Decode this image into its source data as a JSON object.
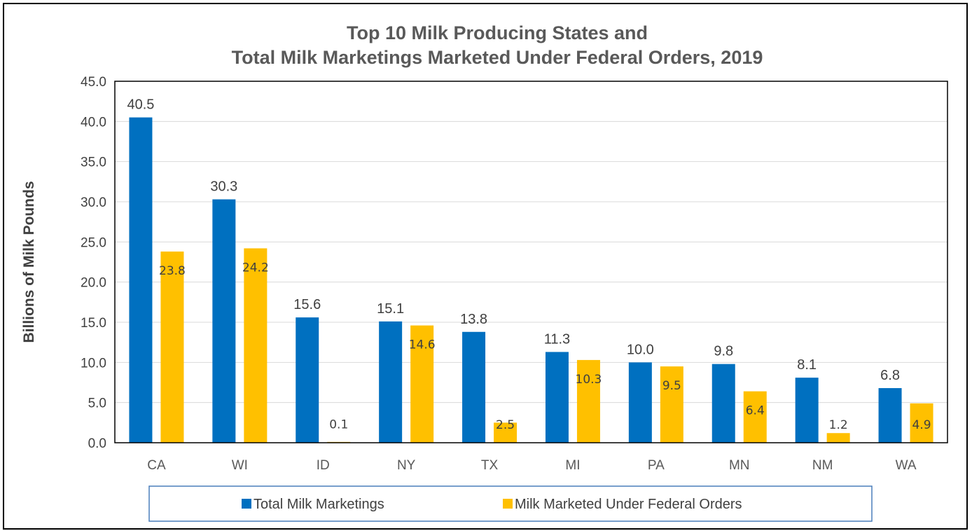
{
  "colors": {
    "series_a": "#0070C0",
    "series_b": "#FFC000",
    "grid": "#d9d9d9",
    "axis": "#000000"
  },
  "chart_data": {
    "type": "bar",
    "title": [
      "Top 10 Milk Producing States and",
      "Total Milk Marketings Marketed Under Federal Orders, 2019"
    ],
    "xlabel": "",
    "ylabel": "Billions of Milk Pounds",
    "ylim": [
      0,
      45
    ],
    "yticks": [
      "0.0",
      "5.0",
      "10.0",
      "15.0",
      "20.0",
      "25.0",
      "30.0",
      "35.0",
      "40.0",
      "45.0"
    ],
    "grid": true,
    "legend": "bottom",
    "categories": [
      "CA",
      "WI",
      "ID",
      "NY",
      "TX",
      "MI",
      "PA",
      "MN",
      "NM",
      "WA"
    ],
    "series": [
      {
        "name": "Total Milk Marketings",
        "values": [
          40.5,
          30.3,
          15.6,
          15.1,
          13.8,
          11.3,
          10.0,
          9.8,
          8.1,
          6.8
        ],
        "labels": [
          "40.5",
          "30.3",
          "15.6",
          "15.1",
          "13.8",
          "11.3",
          "10.0",
          "9.8",
          "8.1",
          "6.8"
        ]
      },
      {
        "name": "Milk Marketed Under Federal Orders",
        "values": [
          23.8,
          24.2,
          0.1,
          14.6,
          2.5,
          10.3,
          9.5,
          6.4,
          1.2,
          4.9
        ],
        "labels": [
          "23.8",
          "24.2",
          "0.1",
          "14.6",
          "2.5",
          "10.3",
          "9.5",
          "6.4",
          "1.2",
          "4.9"
        ]
      }
    ]
  }
}
